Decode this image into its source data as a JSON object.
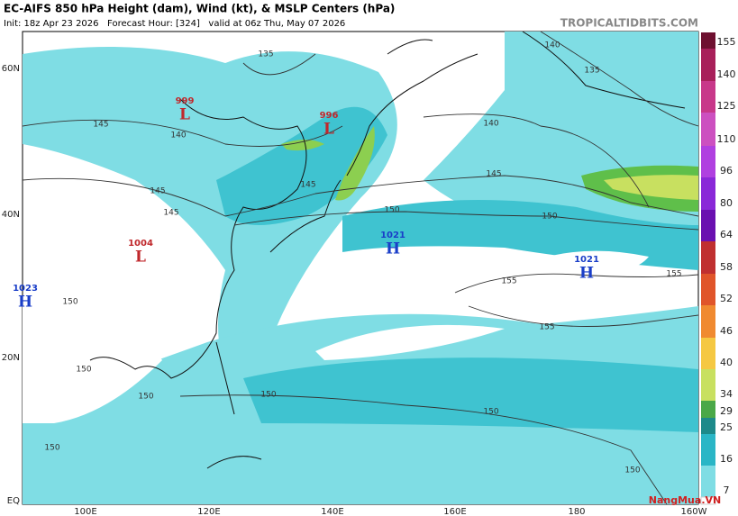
{
  "header": {
    "title": "EC-AIFS 850 hPa Height (dam), Wind (kt), & MSLP Centers (hPa)",
    "subtitle": "Init: 18z Apr 23 2026   Forecast Hour: [324]   valid at 06z Thu, May 07 2026",
    "source": "TROPICALTIDBITS.COM"
  },
  "map": {
    "lat_labels": [
      "60N",
      "40N",
      "20N",
      "EQ"
    ],
    "lon_labels": [
      "100E",
      "120E",
      "140E",
      "160E",
      "180",
      "160W"
    ],
    "contour_labels": [
      135,
      140,
      135,
      140,
      140,
      145,
      145,
      145,
      145,
      150,
      150,
      145,
      155,
      155,
      155,
      150,
      150,
      150,
      150,
      150,
      150,
      150
    ],
    "centers": [
      {
        "pressure": 999,
        "type": "L"
      },
      {
        "pressure": 996,
        "type": "L"
      },
      {
        "pressure": 1004,
        "type": "L"
      },
      {
        "pressure": 1023,
        "type": "H"
      },
      {
        "pressure": 1021,
        "type": "H"
      },
      {
        "pressure": 1021,
        "type": "H"
      }
    ]
  },
  "colorbar": {
    "labels": [
      155,
      140,
      125,
      110,
      96,
      80,
      64,
      58,
      52,
      46,
      40,
      34,
      29,
      25,
      16,
      7
    ]
  },
  "watermark": "NangMua.VN"
}
